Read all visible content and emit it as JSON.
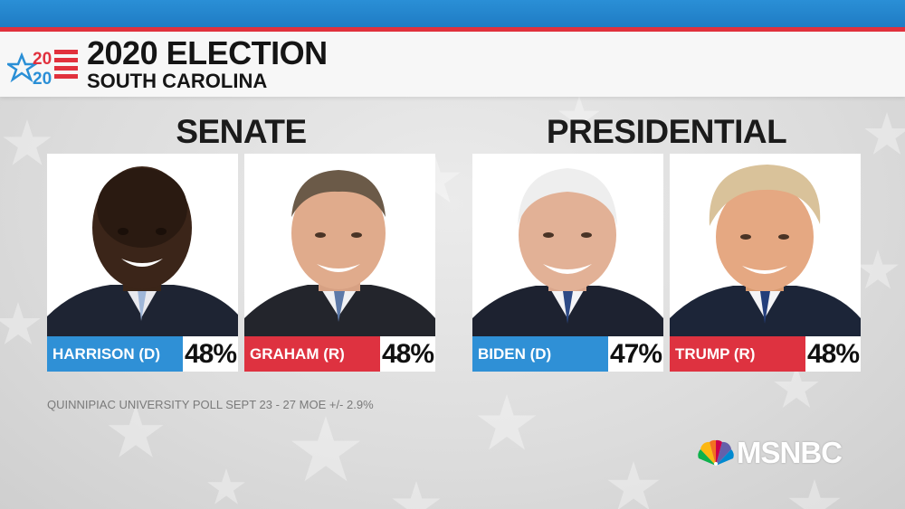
{
  "header": {
    "logo_text": "2020",
    "title": "2020 ELECTION",
    "subtitle": "SOUTH CAROLINA"
  },
  "sections": [
    {
      "title": "SENATE",
      "candidates": [
        {
          "name": "HARRISON (D)",
          "percent": "48%",
          "party": "D",
          "color": "#2f90d6"
        },
        {
          "name": "GRAHAM (R)",
          "percent": "48%",
          "party": "R",
          "color": "#de3240"
        }
      ]
    },
    {
      "title": "PRESIDENTIAL",
      "candidates": [
        {
          "name": "BIDEN (D)",
          "percent": "47%",
          "party": "D",
          "color": "#2f90d6"
        },
        {
          "name": "TRUMP (R)",
          "percent": "48%",
          "party": "R",
          "color": "#de3240"
        }
      ]
    }
  ],
  "source_note": "QUINNIPIAC UNIVERSITY POLL SEPT 23 - 27 MOE +/- 2.9%",
  "network": {
    "name": "MSNBC",
    "icon": "peacock-icon"
  }
}
